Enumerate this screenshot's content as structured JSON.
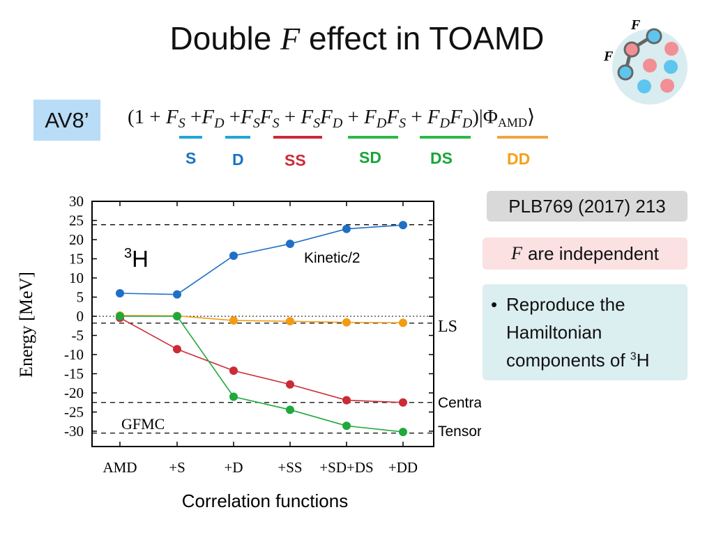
{
  "title": {
    "part1": "Double",
    "f": "F",
    "part2": "effect in TOAMD"
  },
  "logo_labels": [
    "F",
    "F"
  ],
  "av8_label": "AV8’",
  "formula": {
    "open": "(1 + ",
    "terms": [
      {
        "text": "F",
        "sub": "S",
        "sep": " +"
      },
      {
        "text": "F",
        "sub": "D",
        "sep": " +"
      },
      {
        "text": "F",
        "sub": "S",
        "text2": "F",
        "sub2": "S",
        "sep": " + "
      },
      {
        "text": "F",
        "sub": "S",
        "text2": "F",
        "sub2": "D",
        "sep": " + "
      },
      {
        "text": "F",
        "sub": "D",
        "text2": "F",
        "sub2": "S",
        "sep": " + "
      },
      {
        "text": "F",
        "sub": "D",
        "text2": "F",
        "sub2": "D",
        "sep": ""
      }
    ],
    "close": ")|Φ",
    "close_sub": "AMD",
    "close_end": "⟩"
  },
  "term_labels": [
    {
      "label": "S",
      "color": "#1a73c2"
    },
    {
      "label": "D",
      "color": "#1a73c2"
    },
    {
      "label": "SS",
      "color": "#cc2a36"
    },
    {
      "label": "SD",
      "color": "#19a53a"
    },
    {
      "label": "DS",
      "color": "#19a53a"
    },
    {
      "label": "DD",
      "color": "#f5a11a"
    }
  ],
  "term_bar_colors": [
    "#21a6d6",
    "#21a6d6",
    "#cc2a36",
    "#2db84a",
    "#2db84a",
    "#f0a440"
  ],
  "reference": "PLB769 (2017) 213",
  "independent": {
    "f": "F",
    "text": "are independent"
  },
  "reproduce": {
    "bullet": "•",
    "lines": [
      "Reproduce the",
      "Hamiltonian",
      "components of "
    ],
    "sup": "3",
    "tail": "H"
  },
  "chart_data": {
    "type": "line",
    "ylabel": "Energy [MeV]",
    "xlabel": "Correlation functions",
    "categories": [
      "AMD",
      "+S",
      "+D",
      "+SS",
      "+SD+DS",
      "+DD"
    ],
    "ylim": [
      -32,
      30
    ],
    "yticks": [
      30,
      25,
      20,
      15,
      10,
      5,
      0,
      -5,
      -10,
      -15,
      -20,
      -25,
      -30
    ],
    "grid": false,
    "series": [
      {
        "name": "Kinetic/2",
        "color": "#1f6fc6",
        "values": [
          6.0,
          5.7,
          15.8,
          18.9,
          22.8,
          23.8
        ]
      },
      {
        "name": "LS",
        "color": "#f39c12",
        "values": [
          0.2,
          0.1,
          -1.1,
          -1.3,
          -1.6,
          -1.7
        ]
      },
      {
        "name": "Central",
        "color": "#cc2a36",
        "values": [
          -0.4,
          -8.6,
          -14.2,
          -17.8,
          -21.9,
          -22.5
        ]
      },
      {
        "name": "Tensor",
        "color": "#1fa83c",
        "values": [
          0.0,
          0.0,
          -21.0,
          -24.4,
          -28.6,
          -30.2
        ]
      }
    ],
    "gfmc_lines": [
      23.9,
      -1.8,
      -22.5,
      -30.5
    ],
    "zero_line": 0,
    "nucleus": {
      "sup": "3",
      "text": "H"
    },
    "gfmc_label": "GFMC"
  }
}
